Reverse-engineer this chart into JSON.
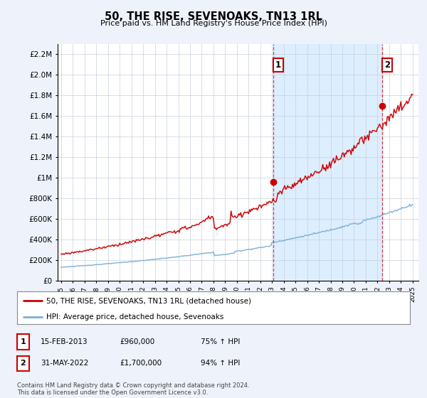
{
  "title": "50, THE RISE, SEVENOAKS, TN13 1RL",
  "subtitle": "Price paid vs. HM Land Registry's House Price Index (HPI)",
  "yticks": [
    0,
    200000,
    400000,
    600000,
    800000,
    1000000,
    1200000,
    1400000,
    1600000,
    1800000,
    2000000,
    2200000
  ],
  "ylim": [
    0,
    2300000
  ],
  "xlim_start": 1994.7,
  "xlim_end": 2025.5,
  "line1_color": "#cc0000",
  "line2_color": "#7aafd4",
  "shade_color": "#ddeeff",
  "marker1_x": 2013.12,
  "marker1_y": 960000,
  "marker2_x": 2022.42,
  "marker2_y": 1700000,
  "legend1": "50, THE RISE, SEVENOAKS, TN13 1RL (detached house)",
  "legend2": "HPI: Average price, detached house, Sevenoaks",
  "table_row1": [
    "1",
    "15-FEB-2013",
    "£960,000",
    "75% ↑ HPI"
  ],
  "table_row2": [
    "2",
    "31-MAY-2022",
    "£1,700,000",
    "94% ↑ HPI"
  ],
  "footnote": "Contains HM Land Registry data © Crown copyright and database right 2024.\nThis data is licensed under the Open Government Licence v3.0.",
  "background_color": "#eef2fb",
  "plot_bg_color": "#ffffff"
}
